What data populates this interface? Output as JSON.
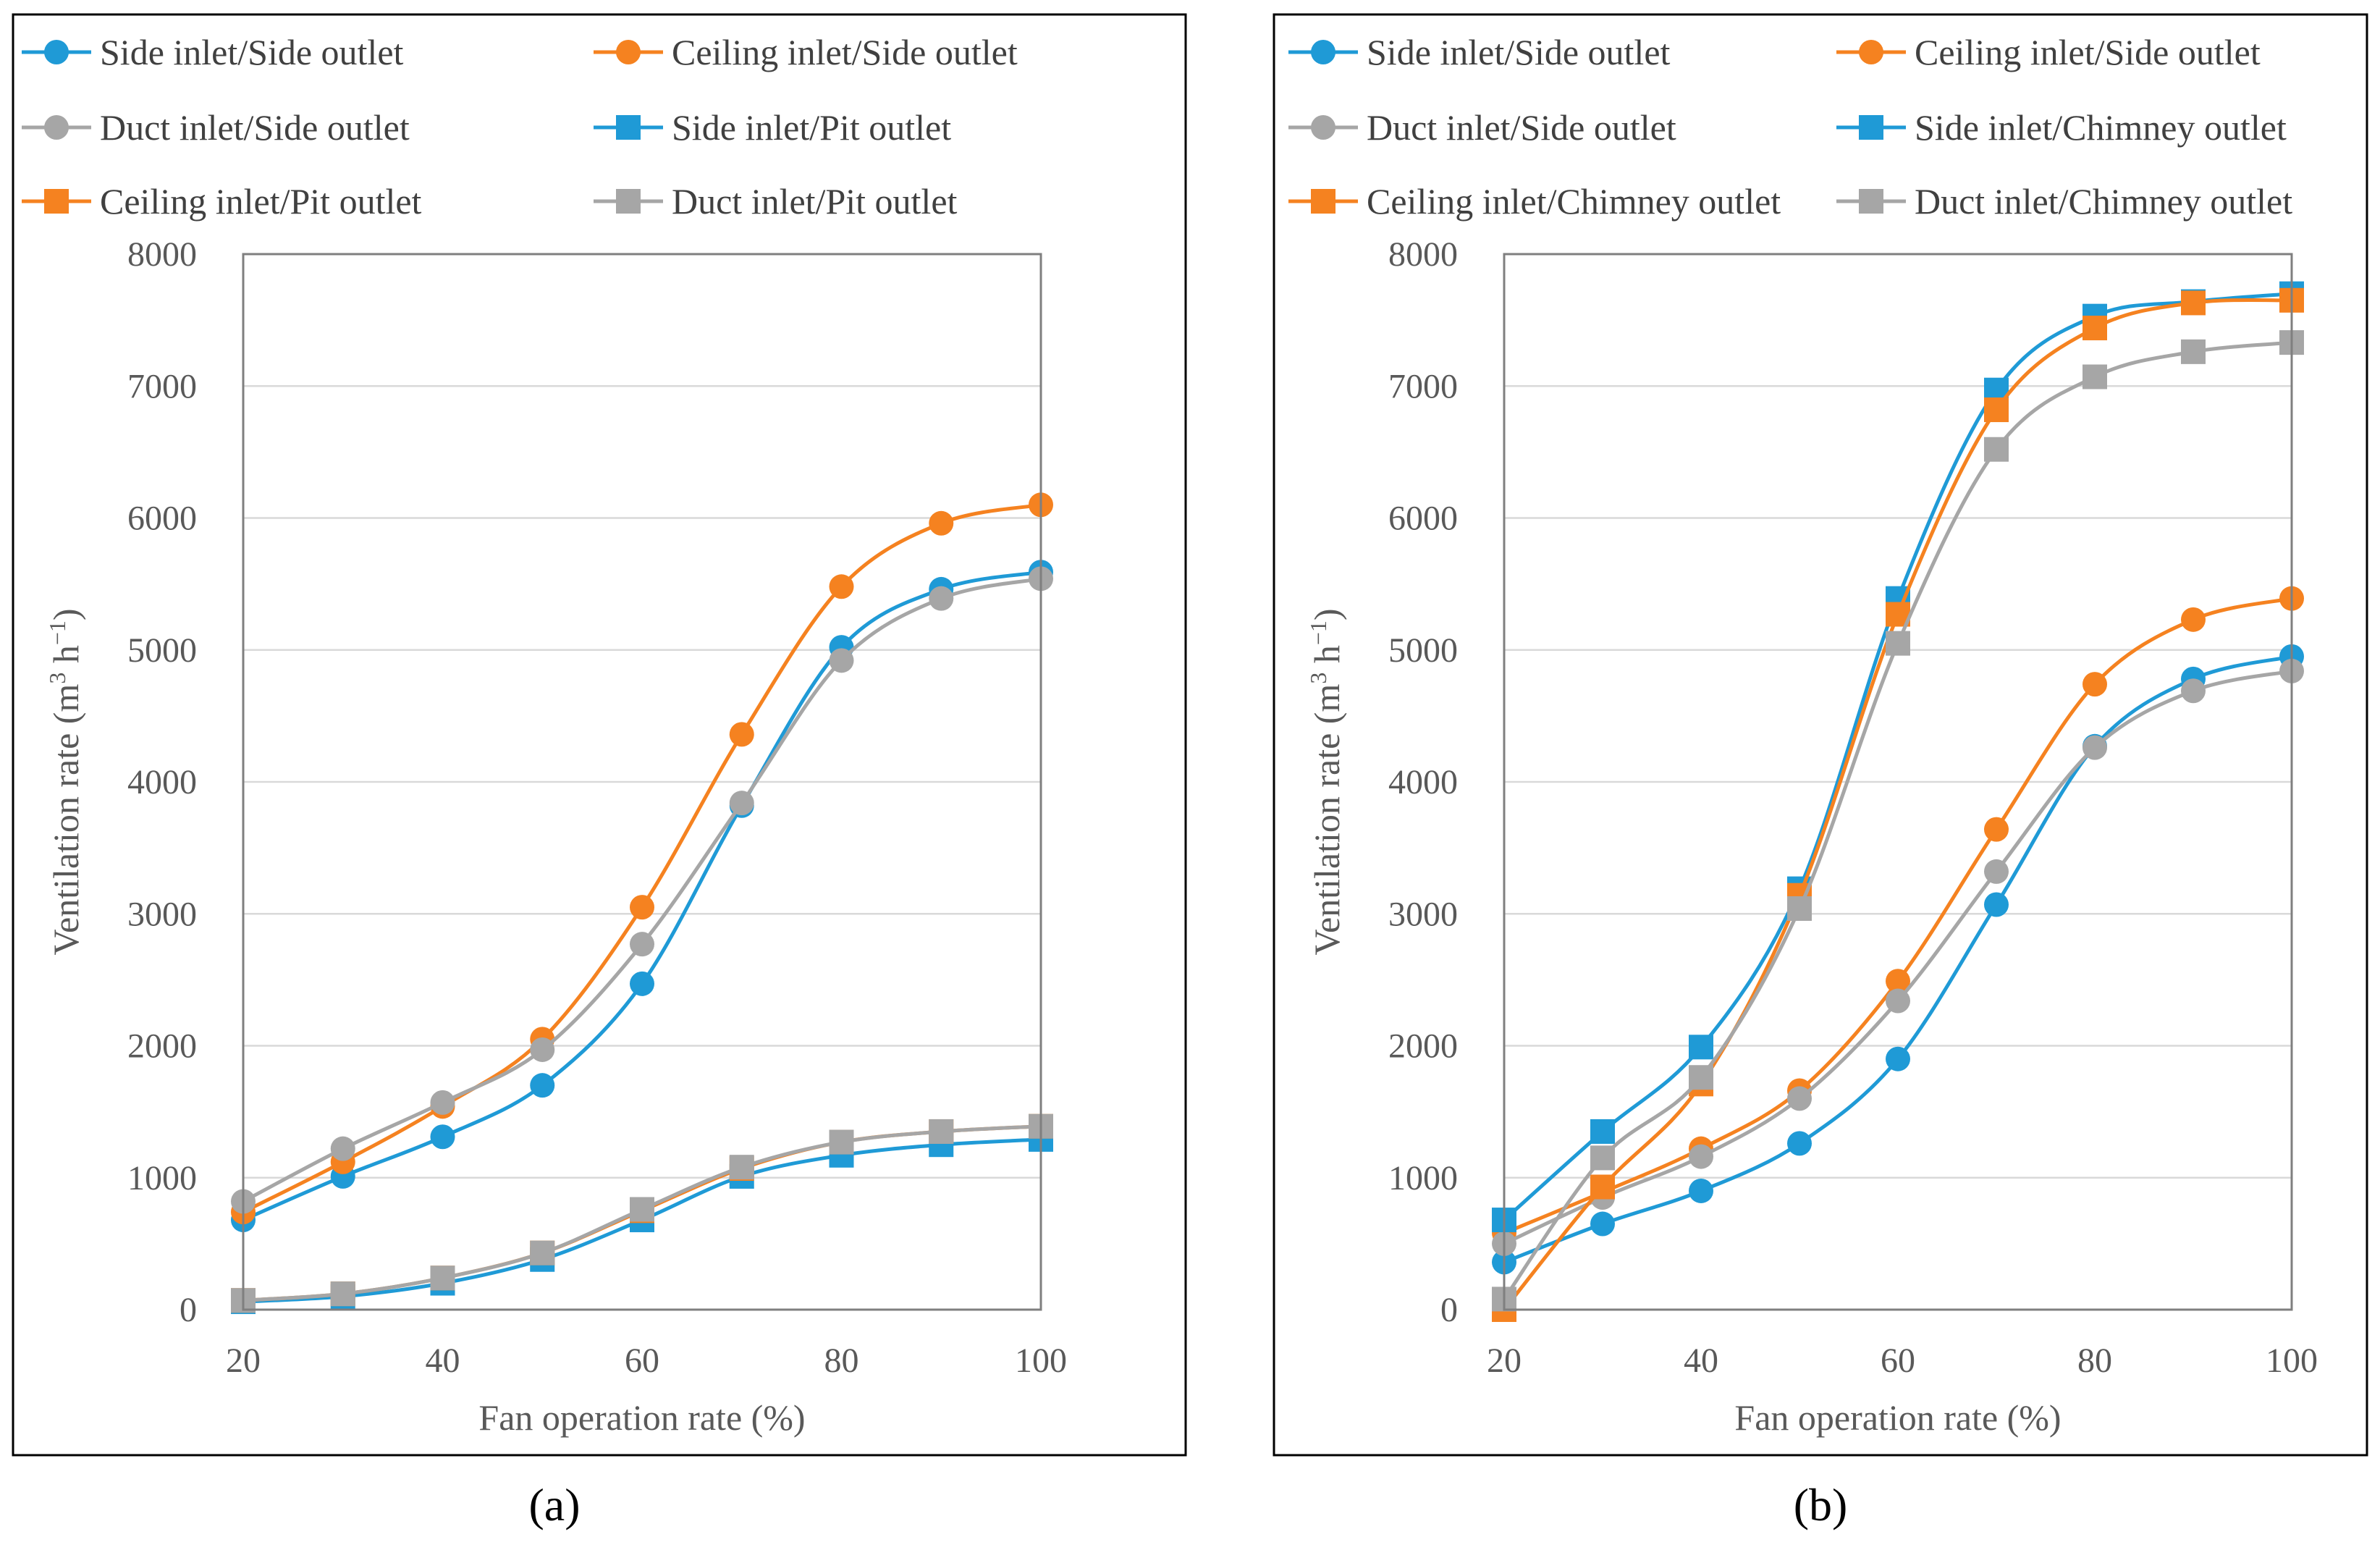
{
  "colors": {
    "blue": "#1f9ad6",
    "orange": "#f58220",
    "gray": "#a6a6a6"
  },
  "chart_data": [
    {
      "panel_label": "(a)",
      "type": "line",
      "xlabel": "Fan operation rate (%)",
      "ylabel_text": "Ventilation rate (m",
      "ylabel_sup1": "3",
      "ylabel_mid": " h",
      "ylabel_sup2": "−1",
      "ylabel_end": ")",
      "x": [
        20,
        30,
        40,
        50,
        60,
        70,
        80,
        90,
        100
      ],
      "xticks": [
        "20",
        "40",
        "60",
        "80",
        "100"
      ],
      "yticks": [
        "0",
        "1000",
        "2000",
        "3000",
        "4000",
        "5000",
        "6000",
        "7000",
        "8000"
      ],
      "xlim": [
        20,
        100
      ],
      "ylim": [
        0,
        8000
      ],
      "grid": "horizontal",
      "legend_position": "top",
      "series": [
        {
          "name": "Side inlet/Side outlet",
          "color": "blue",
          "marker": "circle",
          "values": [
            680,
            1010,
            1310,
            1700,
            2470,
            3820,
            5020,
            5460,
            5590
          ]
        },
        {
          "name": "Ceiling inlet/Side outlet",
          "color": "orange",
          "marker": "circle",
          "values": [
            740,
            1120,
            1540,
            2050,
            3050,
            4360,
            5480,
            5960,
            6100
          ]
        },
        {
          "name": "Duct inlet/Side outlet",
          "color": "gray",
          "marker": "circle",
          "values": [
            820,
            1220,
            1570,
            1970,
            2770,
            3840,
            4920,
            5390,
            5540
          ]
        },
        {
          "name": "Side inlet/Pit outlet",
          "color": "blue",
          "marker": "square",
          "values": [
            60,
            100,
            200,
            380,
            680,
            1010,
            1170,
            1250,
            1290
          ]
        },
        {
          "name": "Ceiling inlet/Pit outlet",
          "color": "orange",
          "marker": "square",
          "values": [
            70,
            120,
            240,
            430,
            750,
            1070,
            1270,
            1350,
            1390
          ]
        },
        {
          "name": "Duct inlet/Pit outlet",
          "color": "gray",
          "marker": "square",
          "values": [
            70,
            120,
            240,
            430,
            760,
            1080,
            1270,
            1350,
            1390
          ]
        }
      ]
    },
    {
      "panel_label": "(b)",
      "type": "line",
      "xlabel": "Fan operation rate (%)",
      "ylabel_text": "Ventilation rate (m",
      "ylabel_sup1": "3",
      "ylabel_mid": " h",
      "ylabel_sup2": "−1",
      "ylabel_end": ")",
      "x": [
        20,
        30,
        40,
        50,
        60,
        70,
        80,
        90,
        100
      ],
      "xticks": [
        "20",
        "40",
        "60",
        "80",
        "100"
      ],
      "yticks": [
        "0",
        "1000",
        "2000",
        "3000",
        "4000",
        "5000",
        "6000",
        "7000",
        "8000"
      ],
      "xlim": [
        20,
        100
      ],
      "ylim": [
        0,
        8000
      ],
      "grid": "horizontal",
      "legend_position": "top",
      "series": [
        {
          "name": "Side inlet/Side outlet",
          "color": "blue",
          "marker": "circle",
          "values": [
            360,
            650,
            900,
            1260,
            1900,
            3070,
            4270,
            4780,
            4950
          ]
        },
        {
          "name": "Ceiling inlet/Side outlet",
          "color": "orange",
          "marker": "circle",
          "values": [
            580,
            890,
            1220,
            1660,
            2490,
            3640,
            4740,
            5230,
            5390
          ]
        },
        {
          "name": "Duct inlet/Side outlet",
          "color": "gray",
          "marker": "circle",
          "values": [
            500,
            850,
            1160,
            1600,
            2340,
            3320,
            4260,
            4690,
            4840
          ]
        },
        {
          "name": "Side inlet/Chimney outlet",
          "color": "blue",
          "marker": "square",
          "values": [
            680,
            1350,
            1990,
            3190,
            5390,
            6970,
            7530,
            7640,
            7700
          ]
        },
        {
          "name": "Ceiling inlet/Chimney outlet",
          "color": "orange",
          "marker": "square",
          "values": [
            0,
            930,
            1710,
            3140,
            5270,
            6820,
            7440,
            7630,
            7650
          ]
        },
        {
          "name": "Duct inlet/Chimney outlet",
          "color": "gray",
          "marker": "square",
          "values": [
            80,
            1150,
            1760,
            3040,
            5050,
            6520,
            7070,
            7260,
            7330
          ]
        }
      ]
    }
  ]
}
